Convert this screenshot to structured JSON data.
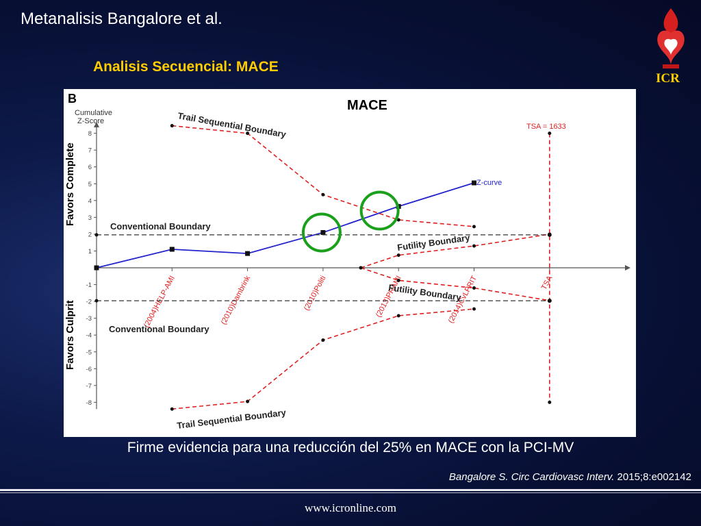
{
  "slide": {
    "title": "Metanalisis Bangalore et al.",
    "subtitle": "Analisis Secuencial: MACE",
    "logo_text": "ICR",
    "conclusion": "Firme evidencia para una reducción del 25% en MACE con la PCI-MV",
    "citation_italic": "Bangalore S. Circ Cardiovasc Interv.",
    "citation_rest": " 2015;8:e002142",
    "footer": "www.icronline.com",
    "colors": {
      "background": "#070f33",
      "subtitle": "#ffcc00",
      "zcurve": "#2323cc",
      "boundary": "#e02020",
      "highlight": "#1aa01a"
    }
  },
  "chart_data": {
    "type": "line",
    "panel_label": "B",
    "title": "MACE",
    "ylabel": "Cumulative\nZ-Score",
    "ylabel_lines": [
      "Cumulative",
      "Z-Score"
    ],
    "favors_top": "Favors Complete",
    "favors_bottom": "Favors Culprit",
    "ylim": [
      -8.5,
      9
    ],
    "yticks": [
      -8,
      -7,
      -6,
      -5,
      -4,
      -3,
      -2,
      -1,
      1,
      2,
      3,
      4,
      5,
      6,
      7,
      8
    ],
    "x_labels": [
      "(2004)HELP-AMI",
      "(2010)Dambrink",
      "(2010)Politi",
      "(2013)PRAMI",
      "(2014)CvLPRIT",
      "TSA"
    ],
    "x_positions": [
      1,
      2,
      3,
      4,
      5,
      6
    ],
    "series": [
      {
        "name": "Z-curve",
        "kind": "zcurve",
        "x": [
          0,
          1,
          2,
          3,
          4,
          5
        ],
        "y": [
          0,
          1.1,
          0.85,
          2.1,
          3.65,
          5.05
        ]
      },
      {
        "name": "Trail Sequential Boundary",
        "kind": "trial_upper",
        "x": [
          1,
          2,
          3,
          4,
          5
        ],
        "y": [
          8.45,
          8.0,
          4.35,
          2.85,
          2.45
        ]
      },
      {
        "name": "Trail Sequential Boundary",
        "kind": "trial_lower",
        "x": [
          1,
          2,
          3,
          4,
          5
        ],
        "y": [
          -8.4,
          -7.95,
          -4.3,
          -2.85,
          -2.45
        ]
      },
      {
        "name": "Futility Boundary",
        "kind": "futility_upper",
        "x": [
          3.5,
          4,
          5,
          6
        ],
        "y": [
          0,
          0.75,
          1.3,
          2.0
        ]
      },
      {
        "name": "Futility Boundary",
        "kind": "futility_lower",
        "x": [
          3.5,
          4,
          5,
          6
        ],
        "y": [
          0,
          -0.75,
          -1.2,
          -1.95
        ]
      },
      {
        "name": "Conventional Boundary",
        "kind": "conventional_upper",
        "x": [
          0,
          6
        ],
        "y": [
          1.96,
          1.96
        ]
      },
      {
        "name": "Conventional Boundary",
        "kind": "conventional_lower",
        "x": [
          0,
          6
        ],
        "y": [
          -1.96,
          -1.96
        ]
      },
      {
        "name": "TSA = 1633",
        "kind": "tsa",
        "x": [
          6,
          6
        ],
        "y": [
          8,
          -8
        ]
      }
    ],
    "annotations": {
      "trail_upper": "Trail Sequential Boundary",
      "trail_lower": "Trail Sequential Boundary",
      "conventional_upper": "Conventional Boundary",
      "conventional_lower": "Conventional Boundary",
      "futility_upper": "Futility Boundary",
      "futility_lower": "Futility Boundary",
      "zcurve": "Z-curve",
      "tsa": "TSA = 1633"
    },
    "highlight_circles": [
      "Z-curve crosses conventional boundary (2010 Politi)",
      "Z-curve crosses trial sequential boundary (2013 PRAMI)"
    ]
  }
}
